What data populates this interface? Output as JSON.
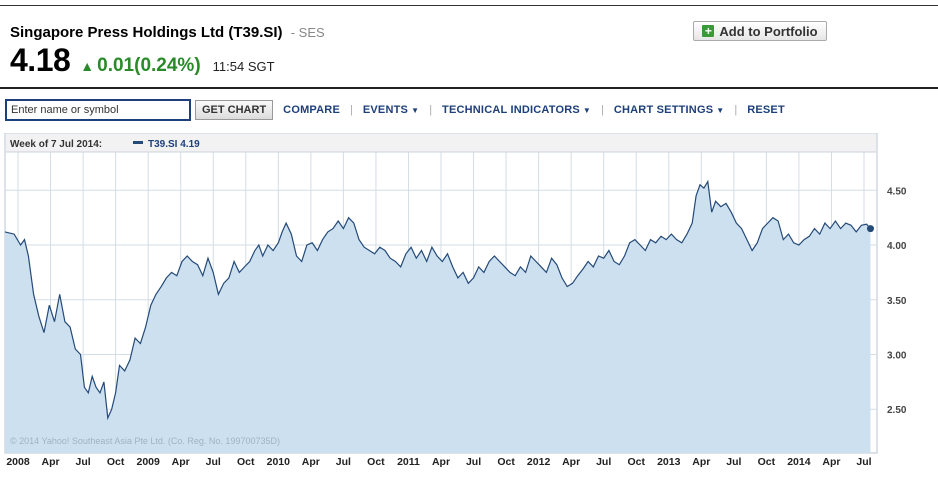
{
  "header": {
    "company": "Singapore Press Holdings Ltd (T39.SI)",
    "exchange": "- SES",
    "price": "4.18",
    "change": "0.01",
    "change_pct": "(0.24%)",
    "time": "11:54 SGT",
    "portfolio_label": "Add to Portfolio"
  },
  "toolbar": {
    "search_placeholder": "Enter name or symbol",
    "get_chart": "GET CHART",
    "compare": "COMPARE",
    "events": "EVENTS",
    "technical": "TECHNICAL INDICATORS",
    "settings": "CHART SETTINGS",
    "reset": "RESET"
  },
  "colors": {
    "line": "#244a78",
    "area": "#cde0ef",
    "positive": "#2a8a2a",
    "link": "#1d3f7a"
  },
  "chart_data": {
    "type": "area",
    "legend_prefix": "Week of 7 Jul 2014:",
    "legend_series": "T39.SI 4.19",
    "copyright": "© 2014 Yahoo! Southeast Asia Pte Ltd. (Co. Reg. No. 199700735D)",
    "ylim": [
      2.1,
      4.85
    ],
    "yticks": [
      2.5,
      3.0,
      3.5,
      4.0,
      4.5
    ],
    "ytick_labels": [
      "2.50",
      "3.00",
      "3.50",
      "4.00",
      "4.50"
    ],
    "xlim": [
      2008.0,
      2014.6
    ],
    "xticks": [
      {
        "x": 2008.0,
        "label": "2008"
      },
      {
        "x": 2008.25,
        "label": "Apr"
      },
      {
        "x": 2008.5,
        "label": "Jul"
      },
      {
        "x": 2008.75,
        "label": "Oct"
      },
      {
        "x": 2009.0,
        "label": "2009"
      },
      {
        "x": 2009.25,
        "label": "Apr"
      },
      {
        "x": 2009.5,
        "label": "Jul"
      },
      {
        "x": 2009.75,
        "label": "Oct"
      },
      {
        "x": 2010.0,
        "label": "2010"
      },
      {
        "x": 2010.25,
        "label": "Apr"
      },
      {
        "x": 2010.5,
        "label": "Jul"
      },
      {
        "x": 2010.75,
        "label": "Oct"
      },
      {
        "x": 2011.0,
        "label": "2011"
      },
      {
        "x": 2011.25,
        "label": "Apr"
      },
      {
        "x": 2011.5,
        "label": "Jul"
      },
      {
        "x": 2011.75,
        "label": "Oct"
      },
      {
        "x": 2012.0,
        "label": "2012"
      },
      {
        "x": 2012.25,
        "label": "Apr"
      },
      {
        "x": 2012.5,
        "label": "Jul"
      },
      {
        "x": 2012.75,
        "label": "Oct"
      },
      {
        "x": 2013.0,
        "label": "2013"
      },
      {
        "x": 2013.25,
        "label": "Apr"
      },
      {
        "x": 2013.5,
        "label": "Jul"
      },
      {
        "x": 2013.75,
        "label": "Oct"
      },
      {
        "x": 2014.0,
        "label": "2014"
      },
      {
        "x": 2014.25,
        "label": "Apr"
      },
      {
        "x": 2014.5,
        "label": "Jul"
      }
    ],
    "grid": true,
    "series": [
      {
        "points": [
          [
            2007.9,
            4.12
          ],
          [
            2007.97,
            4.1
          ],
          [
            2008.02,
            4.0
          ],
          [
            2008.05,
            4.05
          ],
          [
            2008.08,
            3.9
          ],
          [
            2008.12,
            3.55
          ],
          [
            2008.16,
            3.35
          ],
          [
            2008.2,
            3.2
          ],
          [
            2008.24,
            3.45
          ],
          [
            2008.28,
            3.3
          ],
          [
            2008.32,
            3.55
          ],
          [
            2008.36,
            3.3
          ],
          [
            2008.4,
            3.25
          ],
          [
            2008.44,
            3.05
          ],
          [
            2008.48,
            3.0
          ],
          [
            2008.51,
            2.7
          ],
          [
            2008.54,
            2.65
          ],
          [
            2008.57,
            2.8
          ],
          [
            2008.6,
            2.7
          ],
          [
            2008.63,
            2.65
          ],
          [
            2008.66,
            2.75
          ],
          [
            2008.69,
            2.42
          ],
          [
            2008.72,
            2.5
          ],
          [
            2008.75,
            2.65
          ],
          [
            2008.78,
            2.9
          ],
          [
            2008.82,
            2.85
          ],
          [
            2008.86,
            2.95
          ],
          [
            2008.9,
            3.15
          ],
          [
            2008.94,
            3.1
          ],
          [
            2008.98,
            3.25
          ],
          [
            2009.02,
            3.45
          ],
          [
            2009.06,
            3.55
          ],
          [
            2009.1,
            3.62
          ],
          [
            2009.14,
            3.7
          ],
          [
            2009.18,
            3.75
          ],
          [
            2009.22,
            3.72
          ],
          [
            2009.26,
            3.85
          ],
          [
            2009.3,
            3.9
          ],
          [
            2009.34,
            3.85
          ],
          [
            2009.38,
            3.82
          ],
          [
            2009.42,
            3.72
          ],
          [
            2009.46,
            3.88
          ],
          [
            2009.5,
            3.75
          ],
          [
            2009.54,
            3.55
          ],
          [
            2009.58,
            3.65
          ],
          [
            2009.62,
            3.7
          ],
          [
            2009.66,
            3.85
          ],
          [
            2009.7,
            3.75
          ],
          [
            2009.74,
            3.8
          ],
          [
            2009.78,
            3.85
          ],
          [
            2009.82,
            3.95
          ],
          [
            2009.85,
            4.0
          ],
          [
            2009.88,
            3.9
          ],
          [
            2009.92,
            4.0
          ],
          [
            2009.96,
            3.95
          ],
          [
            2010.0,
            4.02
          ],
          [
            2010.03,
            4.12
          ],
          [
            2010.06,
            4.2
          ],
          [
            2010.1,
            4.1
          ],
          [
            2010.14,
            3.9
          ],
          [
            2010.18,
            3.85
          ],
          [
            2010.22,
            4.0
          ],
          [
            2010.26,
            4.02
          ],
          [
            2010.3,
            3.95
          ],
          [
            2010.34,
            4.05
          ],
          [
            2010.38,
            4.12
          ],
          [
            2010.42,
            4.15
          ],
          [
            2010.46,
            4.22
          ],
          [
            2010.5,
            4.15
          ],
          [
            2010.54,
            4.25
          ],
          [
            2010.58,
            4.2
          ],
          [
            2010.62,
            4.05
          ],
          [
            2010.66,
            3.98
          ],
          [
            2010.7,
            3.95
          ],
          [
            2010.74,
            3.92
          ],
          [
            2010.78,
            3.98
          ],
          [
            2010.82,
            3.95
          ],
          [
            2010.86,
            3.88
          ],
          [
            2010.9,
            3.85
          ],
          [
            2010.94,
            3.8
          ],
          [
            2010.98,
            3.92
          ],
          [
            2011.02,
            3.98
          ],
          [
            2011.06,
            3.88
          ],
          [
            2011.1,
            3.95
          ],
          [
            2011.14,
            3.85
          ],
          [
            2011.18,
            3.98
          ],
          [
            2011.22,
            3.9
          ],
          [
            2011.26,
            3.85
          ],
          [
            2011.3,
            3.92
          ],
          [
            2011.34,
            3.8
          ],
          [
            2011.38,
            3.7
          ],
          [
            2011.42,
            3.75
          ],
          [
            2011.46,
            3.65
          ],
          [
            2011.5,
            3.7
          ],
          [
            2011.54,
            3.8
          ],
          [
            2011.58,
            3.75
          ],
          [
            2011.62,
            3.85
          ],
          [
            2011.66,
            3.9
          ],
          [
            2011.7,
            3.85
          ],
          [
            2011.74,
            3.8
          ],
          [
            2011.78,
            3.75
          ],
          [
            2011.82,
            3.72
          ],
          [
            2011.86,
            3.8
          ],
          [
            2011.9,
            3.75
          ],
          [
            2011.94,
            3.9
          ],
          [
            2011.98,
            3.85
          ],
          [
            2012.02,
            3.8
          ],
          [
            2012.06,
            3.75
          ],
          [
            2012.1,
            3.88
          ],
          [
            2012.14,
            3.82
          ],
          [
            2012.18,
            3.7
          ],
          [
            2012.22,
            3.62
          ],
          [
            2012.26,
            3.65
          ],
          [
            2012.3,
            3.72
          ],
          [
            2012.34,
            3.78
          ],
          [
            2012.38,
            3.85
          ],
          [
            2012.42,
            3.8
          ],
          [
            2012.46,
            3.9
          ],
          [
            2012.5,
            3.88
          ],
          [
            2012.54,
            3.95
          ],
          [
            2012.58,
            3.85
          ],
          [
            2012.62,
            3.82
          ],
          [
            2012.66,
            3.9
          ],
          [
            2012.7,
            4.02
          ],
          [
            2012.74,
            4.05
          ],
          [
            2012.78,
            4.0
          ],
          [
            2012.82,
            3.95
          ],
          [
            2012.86,
            4.05
          ],
          [
            2012.9,
            4.02
          ],
          [
            2012.94,
            4.08
          ],
          [
            2012.98,
            4.05
          ],
          [
            2013.02,
            4.1
          ],
          [
            2013.06,
            4.05
          ],
          [
            2013.1,
            4.02
          ],
          [
            2013.14,
            4.1
          ],
          [
            2013.18,
            4.2
          ],
          [
            2013.21,
            4.45
          ],
          [
            2013.24,
            4.55
          ],
          [
            2013.27,
            4.52
          ],
          [
            2013.3,
            4.58
          ],
          [
            2013.33,
            4.3
          ],
          [
            2013.36,
            4.4
          ],
          [
            2013.4,
            4.35
          ],
          [
            2013.44,
            4.38
          ],
          [
            2013.48,
            4.3
          ],
          [
            2013.52,
            4.2
          ],
          [
            2013.56,
            4.15
          ],
          [
            2013.6,
            4.05
          ],
          [
            2013.64,
            3.95
          ],
          [
            2013.68,
            4.02
          ],
          [
            2013.72,
            4.15
          ],
          [
            2013.76,
            4.2
          ],
          [
            2013.8,
            4.25
          ],
          [
            2013.84,
            4.22
          ],
          [
            2013.88,
            4.05
          ],
          [
            2013.92,
            4.1
          ],
          [
            2013.96,
            4.02
          ],
          [
            2014.0,
            4.0
          ],
          [
            2014.04,
            4.05
          ],
          [
            2014.08,
            4.08
          ],
          [
            2014.12,
            4.15
          ],
          [
            2014.16,
            4.1
          ],
          [
            2014.2,
            4.2
          ],
          [
            2014.24,
            4.15
          ],
          [
            2014.28,
            4.22
          ],
          [
            2014.32,
            4.15
          ],
          [
            2014.36,
            4.2
          ],
          [
            2014.4,
            4.18
          ],
          [
            2014.44,
            4.12
          ],
          [
            2014.48,
            4.18
          ],
          [
            2014.52,
            4.19
          ],
          [
            2014.55,
            4.15
          ]
        ]
      }
    ]
  }
}
